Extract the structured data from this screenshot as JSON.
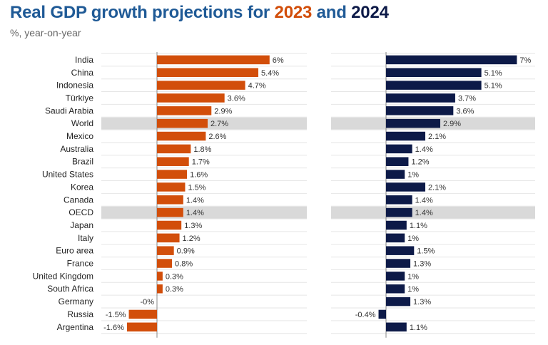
{
  "title": {
    "prefix": "Real GDP growth projections for ",
    "year1": "2023",
    "mid": " and ",
    "year2": "2024"
  },
  "subtitle": "%, year-on-year",
  "colors": {
    "series_2023": "#d24e0a",
    "series_2024": "#0d1a48",
    "title": "#1f5a96",
    "highlight_band": "#d9d9d9",
    "gridline": "#e6e6e6",
    "axis": "#888888"
  },
  "chart_data": [
    {
      "type": "bar",
      "orientation": "horizontal",
      "categories": [
        "India",
        "China",
        "Indonesia",
        "Türkiye",
        "Saudi Arabia",
        "World",
        "Mexico",
        "Australia",
        "Brazil",
        "United States",
        "Korea",
        "Canada",
        "OECD",
        "Japan",
        "Italy",
        "Euro area",
        "France",
        "United Kingdom",
        "South Africa",
        "Germany",
        "Russia",
        "Argentina"
      ],
      "highlighted_categories": [
        "World",
        "OECD"
      ],
      "values": [
        6,
        5.4,
        4.7,
        3.6,
        2.9,
        2.7,
        2.6,
        1.8,
        1.7,
        1.6,
        1.5,
        1.4,
        1.4,
        1.3,
        1.2,
        0.9,
        0.8,
        0.3,
        0.3,
        -0.0,
        -1.5,
        -1.6
      ],
      "data_labels": [
        "6%",
        "5.4%",
        "4.7%",
        "3.6%",
        "2.9%",
        "2.7%",
        "2.6%",
        "1.8%",
        "1.7%",
        "1.6%",
        "1.5%",
        "1.4%",
        "1.4%",
        "1.3%",
        "1.2%",
        "0.9%",
        "0.8%",
        "0.3%",
        "0.3%",
        "-0%",
        "-1.5%",
        "-1.6%"
      ],
      "xlim": [
        -2.2,
        7.6
      ],
      "grid": "horizontal row lines",
      "legend": "none"
    },
    {
      "type": "bar",
      "orientation": "horizontal",
      "categories": [
        "India",
        "China",
        "Indonesia",
        "Türkiye",
        "Saudi Arabia",
        "World",
        "Mexico",
        "Australia",
        "Brazil",
        "United States",
        "Korea",
        "Canada",
        "OECD",
        "Japan",
        "Italy",
        "Euro area",
        "France",
        "United Kingdom",
        "South Africa",
        "Germany",
        "Russia",
        "Argentina"
      ],
      "highlighted_categories": [
        "World",
        "OECD"
      ],
      "values": [
        7,
        5.1,
        5.1,
        3.7,
        3.6,
        2.9,
        2.1,
        1.4,
        1.2,
        1.0,
        2.1,
        1.4,
        1.4,
        1.1,
        1.0,
        1.5,
        1.3,
        1.0,
        1.0,
        1.3,
        -0.4,
        1.1
      ],
      "data_labels": [
        "7%",
        "5.1%",
        "5.1%",
        "3.7%",
        "3.6%",
        "2.9%",
        "2.1%",
        "1.4%",
        "1.2%",
        "1%",
        "2.1%",
        "1.4%",
        "1.4%",
        "1.1%",
        "1%",
        "1.5%",
        "1.3%",
        "1%",
        "1%",
        "1.3%",
        "-0.4%",
        "1.1%"
      ],
      "xlim": [
        -1.4,
        7.4
      ],
      "grid": "horizontal row lines",
      "legend": "none"
    }
  ]
}
